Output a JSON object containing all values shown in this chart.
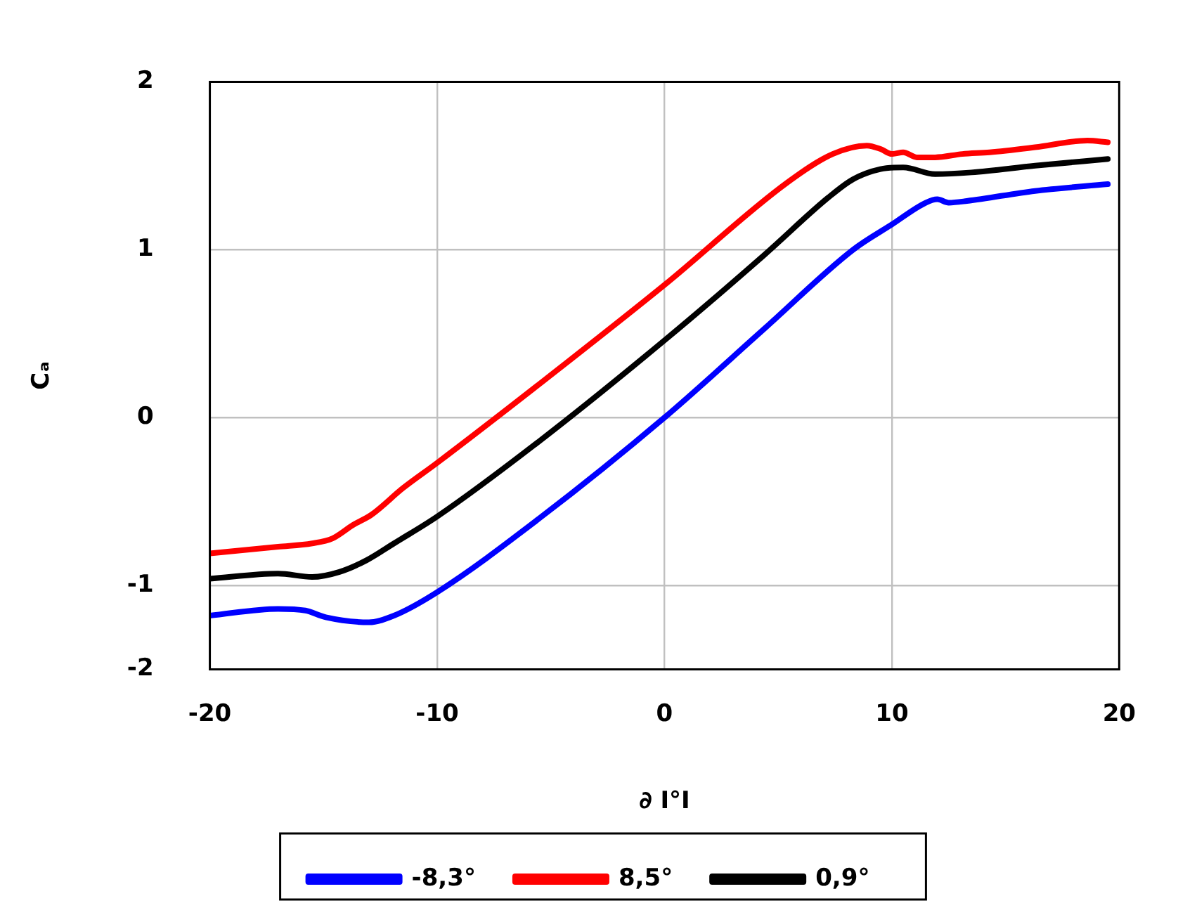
{
  "chart_data": {
    "type": "line",
    "xlabel": "∂ I°I",
    "ylabel": "Cₐ",
    "xlim": [
      -20,
      20
    ],
    "xticks": [
      -20,
      -10,
      0,
      10,
      20
    ],
    "ylim": [
      -1.5,
      2
    ],
    "yticks": [
      {
        "value": -1.5,
        "label": "-2"
      },
      -1,
      0,
      1,
      2
    ],
    "grid": true,
    "legend": "bottom",
    "marker": "none",
    "line_style": "solid",
    "series": [
      {
        "name": "-8,3°",
        "color": "#0000ff",
        "x": [
          -20,
          -17,
          -15.8,
          -14.9,
          -13,
          -11.9,
          -10,
          -5.5,
          0,
          4.4,
          8.3,
          10,
          11.5,
          12,
          12.5,
          13.3,
          16.3,
          19.5
        ],
        "values": [
          -1.18,
          -1.14,
          -1.15,
          -1.19,
          -1.22,
          -1.18,
          -1.04,
          -0.6,
          0,
          0.53,
          1.0,
          1.15,
          1.28,
          1.3,
          1.28,
          1.29,
          1.35,
          1.39
        ]
      },
      {
        "name": "8,5°",
        "color": "#ff0000",
        "x": [
          -20,
          -17,
          -15.5,
          -14.6,
          -13.7,
          -12.9,
          -11.5,
          -10,
          -5.5,
          0,
          5.4,
          7.4,
          8.9,
          9.5,
          10,
          10.5,
          11.1,
          11.9,
          13.1,
          14.3,
          16.3,
          18.6,
          19.5
        ],
        "values": [
          -0.81,
          -0.77,
          -0.75,
          -0.72,
          -0.64,
          -0.58,
          -0.42,
          -0.27,
          0.2,
          0.79,
          1.4,
          1.57,
          1.62,
          1.6,
          1.57,
          1.58,
          1.55,
          1.55,
          1.57,
          1.58,
          1.61,
          1.65,
          1.64
        ]
      },
      {
        "name": "0,9°",
        "color": "#000000",
        "x": [
          -20,
          -17,
          -15.5,
          -14.3,
          -13.1,
          -11.9,
          -10,
          -5.5,
          0,
          4.4,
          7.2,
          8.3,
          9.5,
          10.5,
          11.9,
          13.5,
          16.3,
          19.5
        ],
        "values": [
          -0.96,
          -0.93,
          -0.95,
          -0.92,
          -0.85,
          -0.75,
          -0.59,
          -0.14,
          0.46,
          0.97,
          1.31,
          1.42,
          1.48,
          1.49,
          1.45,
          1.46,
          1.5,
          1.54
        ]
      }
    ]
  }
}
